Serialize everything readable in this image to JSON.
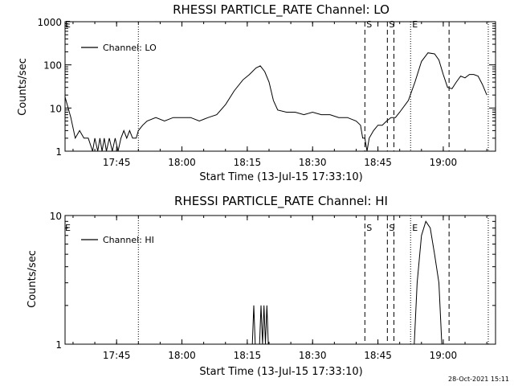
{
  "footer": {
    "timestamp": "28-Oct-2021 15:11"
  },
  "chart_data": [
    {
      "type": "line",
      "title": "RHESSI PARTICLE_RATE Channel: LO",
      "xlabel": "Start Time (13-Jul-15 17:33:10)",
      "ylabel": "Counts/sec",
      "yscale": "log",
      "ylim": [
        1,
        1000
      ],
      "xlim": [
        "17:33:10",
        "19:12:00"
      ],
      "xticks": [
        "17:45",
        "18:00",
        "18:15",
        "18:30",
        "18:45",
        "19:00"
      ],
      "yticks": [
        "1",
        "10",
        "100",
        "1000"
      ],
      "legend": {
        "placement": "top-left",
        "entries": [
          "Channel: LO"
        ]
      },
      "markers": [
        {
          "time": "17:50:00",
          "label": "",
          "style": "dotted"
        },
        {
          "time": "18:42:00",
          "label": "S",
          "style": "dashed"
        },
        {
          "time": "18:47:10",
          "label": "S",
          "style": "dashed"
        },
        {
          "time": "18:48:40",
          "label": "",
          "style": "dashed"
        },
        {
          "time": "18:52:30",
          "label": "E",
          "style": "dotted"
        },
        {
          "time": "19:01:20",
          "label": "",
          "style": "dashed"
        },
        {
          "time": "19:10:20",
          "label": "",
          "style": "dotted"
        }
      ],
      "start_marker": "E",
      "series": [
        {
          "values": [
            [
              "17:33:10",
              18
            ],
            [
              "17:34:30",
              6
            ],
            [
              "17:35:30",
              2
            ],
            [
              "17:36:30",
              3
            ],
            [
              "17:37:30",
              2
            ],
            [
              "17:38:30",
              2
            ],
            [
              "17:39:30",
              1
            ],
            [
              "17:40:00",
              2
            ],
            [
              "17:40:40",
              1
            ],
            [
              "17:41:10",
              2
            ],
            [
              "17:41:40",
              1
            ],
            [
              "17:42:10",
              2
            ],
            [
              "17:42:40",
              1
            ],
            [
              "17:43:20",
              2
            ],
            [
              "17:44:00",
              1
            ],
            [
              "17:44:40",
              2
            ],
            [
              "17:45:20",
              1
            ],
            [
              "17:46:00",
              2
            ],
            [
              "17:46:40",
              3
            ],
            [
              "17:47:20",
              2
            ],
            [
              "17:48:00",
              3
            ],
            [
              "17:48:40",
              2
            ],
            [
              "17:49:30",
              2
            ],
            [
              "17:50:00",
              3
            ],
            [
              "17:51:00",
              4
            ],
            [
              "17:52:00",
              5
            ],
            [
              "17:54:00",
              6
            ],
            [
              "17:56:00",
              5
            ],
            [
              "17:58:00",
              6
            ],
            [
              "18:00:00",
              6
            ],
            [
              "18:02:00",
              6
            ],
            [
              "18:04:00",
              5
            ],
            [
              "18:06:00",
              6
            ],
            [
              "18:08:00",
              7
            ],
            [
              "18:10:00",
              12
            ],
            [
              "18:12:00",
              25
            ],
            [
              "18:14:00",
              45
            ],
            [
              "18:15:30",
              60
            ],
            [
              "18:17:00",
              85
            ],
            [
              "18:18:00",
              95
            ],
            [
              "18:19:00",
              70
            ],
            [
              "18:20:00",
              40
            ],
            [
              "18:21:00",
              15
            ],
            [
              "18:22:00",
              9
            ],
            [
              "18:24:00",
              8
            ],
            [
              "18:26:00",
              8
            ],
            [
              "18:28:00",
              7
            ],
            [
              "18:30:00",
              8
            ],
            [
              "18:32:00",
              7
            ],
            [
              "18:34:00",
              7
            ],
            [
              "18:36:00",
              6
            ],
            [
              "18:38:00",
              6
            ],
            [
              "18:40:00",
              5
            ],
            [
              "18:41:00",
              4
            ],
            [
              "18:41:30",
              2
            ],
            [
              "18:42:00",
              2
            ],
            [
              "18:42:30",
              1
            ],
            [
              "18:43:00",
              2
            ],
            [
              "18:44:00",
              3
            ],
            [
              "18:45:00",
              4
            ],
            [
              "18:46:00",
              4
            ],
            [
              "18:47:00",
              5
            ],
            [
              "18:48:00",
              6
            ],
            [
              "18:49:00",
              6
            ],
            [
              "18:50:00",
              8
            ],
            [
              "18:52:00",
              15
            ],
            [
              "18:53:30",
              40
            ],
            [
              "18:55:00",
              120
            ],
            [
              "18:56:30",
              190
            ],
            [
              "18:58:00",
              180
            ],
            [
              "18:59:00",
              130
            ],
            [
              "19:00:00",
              60
            ],
            [
              "19:01:00",
              30
            ],
            [
              "19:02:00",
              28
            ],
            [
              "19:03:00",
              40
            ],
            [
              "19:04:00",
              55
            ],
            [
              "19:05:00",
              50
            ],
            [
              "19:06:00",
              60
            ],
            [
              "19:07:00",
              60
            ],
            [
              "19:08:00",
              55
            ],
            [
              "19:09:00",
              35
            ],
            [
              "19:10:00",
              20
            ]
          ]
        }
      ]
    },
    {
      "type": "line",
      "title": "RHESSI PARTICLE_RATE Channel: HI",
      "xlabel": "Start Time (13-Jul-15 17:33:10)",
      "ylabel": "Counts/sec",
      "yscale": "log",
      "ylim": [
        1,
        10
      ],
      "xlim": [
        "17:33:10",
        "19:12:00"
      ],
      "xticks": [
        "17:45",
        "18:00",
        "18:15",
        "18:30",
        "18:45",
        "19:00"
      ],
      "yticks": [
        "1",
        "10"
      ],
      "legend": {
        "placement": "top-left",
        "entries": [
          "Channel: HI"
        ]
      },
      "markers": [
        {
          "time": "17:50:00",
          "label": "",
          "style": "dotted"
        },
        {
          "time": "18:42:00",
          "label": "S",
          "style": "dashed"
        },
        {
          "time": "18:47:10",
          "label": "S",
          "style": "dashed"
        },
        {
          "time": "18:48:40",
          "label": "",
          "style": "dashed"
        },
        {
          "time": "18:52:30",
          "label": "E",
          "style": "dotted"
        },
        {
          "time": "19:01:20",
          "label": "",
          "style": "dashed"
        },
        {
          "time": "19:10:20",
          "label": "",
          "style": "dotted"
        }
      ],
      "start_marker": "E",
      "series": [
        {
          "values": [
            [
              "18:16:10",
              1
            ],
            [
              "18:16:30",
              2
            ],
            [
              "18:16:50",
              1
            ],
            [
              "18:17:50",
              1
            ],
            [
              "18:18:10",
              2
            ],
            [
              "18:18:30",
              1
            ],
            [
              "18:18:50",
              2
            ],
            [
              "18:19:10",
              1
            ],
            [
              "18:19:30",
              2
            ],
            [
              "18:19:50",
              1
            ],
            [
              "18:53:20",
              1
            ],
            [
              "18:54:00",
              3
            ],
            [
              "18:55:00",
              7
            ],
            [
              "18:56:00",
              9
            ],
            [
              "18:57:00",
              8
            ],
            [
              "18:58:00",
              5
            ],
            [
              "18:59:00",
              3
            ],
            [
              "18:59:40",
              1
            ]
          ]
        }
      ]
    }
  ]
}
